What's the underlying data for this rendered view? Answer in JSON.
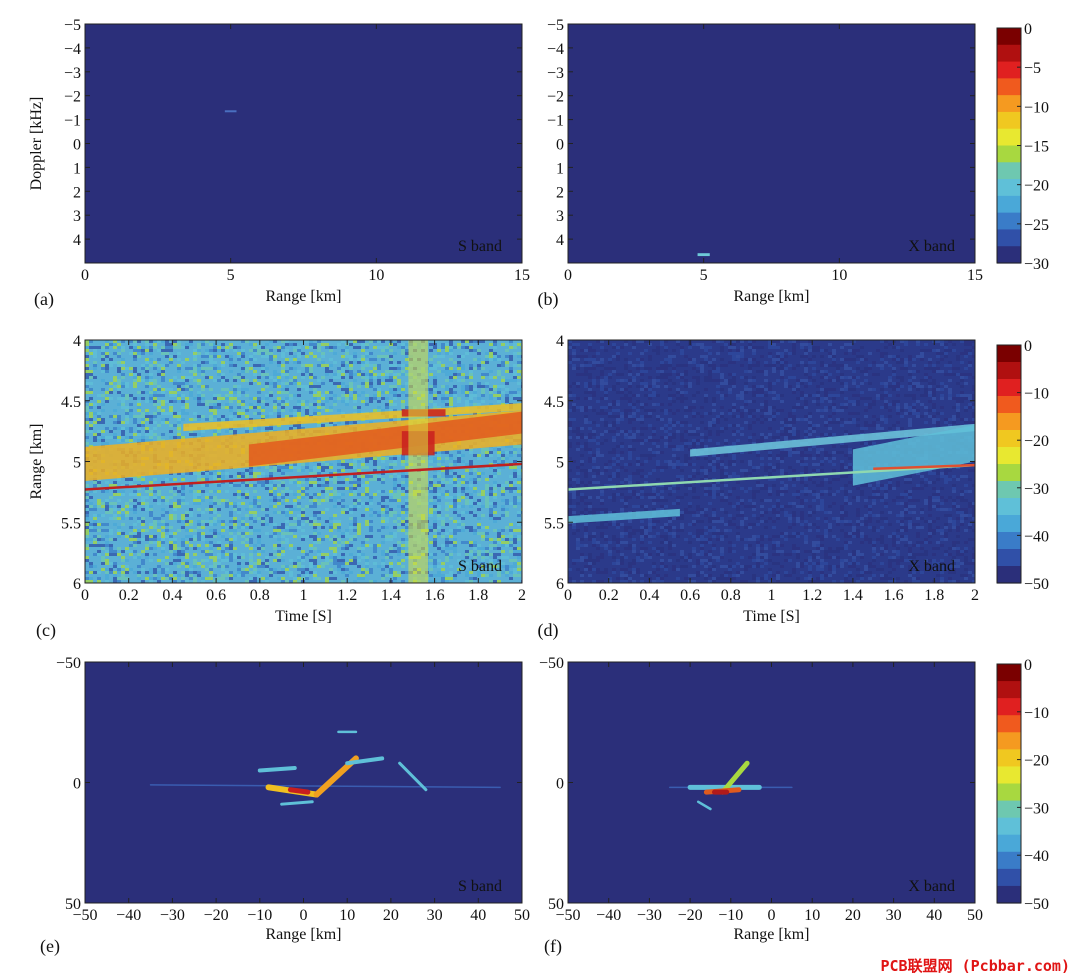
{
  "watermark": "PCB联盟网 (Pcbbar.com)",
  "chart_data": [
    {
      "id": "a",
      "type": "heatmap",
      "panel_label": "(a)",
      "band_label": "S band",
      "xlabel": "Range [km]",
      "ylabel": "Doppler [kHz]",
      "xlim": [
        0,
        15
      ],
      "ylim": [
        -5,
        5
      ],
      "y_inverted": true,
      "xticks": [
        0,
        5,
        10,
        15
      ],
      "xtick_labels": [
        "0",
        "5",
        "10",
        "15"
      ],
      "yticks": [
        -5,
        -4,
        -3,
        -2,
        -1,
        0,
        1,
        2,
        3,
        4
      ],
      "ytick_labels": [
        "−5",
        "−4",
        "−3",
        "−2",
        "−1",
        "0",
        "1",
        "2",
        "3",
        "4"
      ],
      "background": "#2b2f7a",
      "features": [
        {
          "x": 5.0,
          "y": -1.35,
          "w": 0.4,
          "h": 0.08,
          "color": "#4a6fc0"
        }
      ]
    },
    {
      "id": "b",
      "type": "heatmap",
      "panel_label": "(b)",
      "band_label": "X band",
      "xlabel": "Range [km]",
      "ylabel": "",
      "xlim": [
        0,
        15
      ],
      "ylim": [
        -5,
        5
      ],
      "y_inverted": true,
      "xticks": [
        0,
        5,
        10,
        15
      ],
      "xtick_labels": [
        "0",
        "5",
        "10",
        "15"
      ],
      "yticks": [
        -5,
        -4,
        -3,
        -2,
        -1,
        0,
        1,
        2,
        3,
        4
      ],
      "ytick_labels": [
        "−5",
        "−4",
        "−3",
        "−2",
        "−1",
        "0",
        "1",
        "2",
        "3",
        "4"
      ],
      "background": "#2b2f7a",
      "features": [
        {
          "x": 5.0,
          "y": 4.65,
          "w": 0.45,
          "h": 0.12,
          "color": "#6ecad8"
        }
      ]
    },
    {
      "id": "c",
      "type": "heatmap",
      "panel_label": "(c)",
      "band_label": "S band",
      "xlabel": "Time [S]",
      "ylabel": "Range [km]",
      "xlim": [
        0,
        2
      ],
      "ylim": [
        4,
        6
      ],
      "y_inverted": true,
      "xticks": [
        0,
        0.2,
        0.4,
        0.6,
        0.8,
        1,
        1.2,
        1.4,
        1.6,
        1.8,
        2
      ],
      "xtick_labels": [
        "0",
        "0.2",
        "0.4",
        "0.6",
        "0.8",
        "1",
        "1.2",
        "1.4",
        "1.6",
        "1.8",
        "2"
      ],
      "yticks": [
        4,
        4.5,
        5,
        5.5,
        6
      ],
      "ytick_labels": [
        "4",
        "4.5",
        "5",
        "5.5",
        "6"
      ],
      "background": "#5bb0d6",
      "features": [
        {
          "kind": "band",
          "x0": 0.45,
          "x1": 2.0,
          "y0a": 4.72,
          "y0b": 4.55,
          "thick": 0.06,
          "color": "#f0c020"
        },
        {
          "kind": "band",
          "x0": 0.0,
          "x1": 2.0,
          "y0a": 5.02,
          "y0b": 4.72,
          "thick": 0.28,
          "color": "#f0b020"
        },
        {
          "kind": "band",
          "x0": 0.75,
          "x1": 2.0,
          "y0a": 4.95,
          "y0b": 4.68,
          "thick": 0.18,
          "color": "#e25a1e"
        },
        {
          "kind": "band",
          "x0": 1.45,
          "x1": 1.6,
          "y0a": 4.85,
          "y0b": 4.85,
          "thick": 0.2,
          "color": "#c81e1e"
        },
        {
          "kind": "band",
          "x0": 1.45,
          "x1": 1.65,
          "y0a": 4.6,
          "y0b": 4.6,
          "thick": 0.06,
          "color": "#c81e1e"
        },
        {
          "kind": "vstripe",
          "x0": 1.48,
          "x1": 1.57,
          "color": "#d8e040"
        },
        {
          "kind": "line",
          "x0": 0.0,
          "x1": 2.0,
          "y0a": 5.23,
          "y0b": 5.02,
          "color": "#c02020"
        }
      ]
    },
    {
      "id": "d",
      "type": "heatmap",
      "panel_label": "(d)",
      "band_label": "X band",
      "xlabel": "Time [S]",
      "ylabel": "",
      "xlim": [
        0,
        2
      ],
      "ylim": [
        4,
        6
      ],
      "y_inverted": true,
      "xticks": [
        0,
        0.2,
        0.4,
        0.6,
        0.8,
        1,
        1.2,
        1.4,
        1.6,
        1.8,
        2
      ],
      "xtick_labels": [
        "0",
        "0.2",
        "0.4",
        "0.6",
        "0.8",
        "1",
        "1.2",
        "1.4",
        "1.6",
        "1.8",
        "2"
      ],
      "yticks": [
        4,
        4.5,
        5,
        5.5,
        6
      ],
      "ytick_labels": [
        "4",
        "4.5",
        "5",
        "5.5",
        "6"
      ],
      "background": "#2b3a8a",
      "features": [
        {
          "kind": "band",
          "x0": 0.6,
          "x1": 2.0,
          "y0a": 4.93,
          "y0b": 4.72,
          "thick": 0.06,
          "color": "#6ec8dc"
        },
        {
          "kind": "band",
          "x0": 1.4,
          "x1": 2.0,
          "y0a": 5.05,
          "y0b": 4.85,
          "thick": 0.3,
          "color": "#5fc0d8"
        },
        {
          "kind": "band",
          "x0": 0.0,
          "x1": 0.55,
          "y0a": 5.48,
          "y0b": 5.42,
          "thick": 0.06,
          "color": "#5fc0d8"
        },
        {
          "kind": "line",
          "x0": 0.0,
          "x1": 2.0,
          "y0a": 5.23,
          "y0b": 5.03,
          "color": "#8fd8b0"
        },
        {
          "kind": "line",
          "x0": 1.5,
          "x1": 2.0,
          "y0a": 5.06,
          "y0b": 5.03,
          "color": "#e05030"
        }
      ]
    },
    {
      "id": "e",
      "type": "heatmap",
      "panel_label": "(e)",
      "band_label": "S band",
      "xlabel": "Range [km]",
      "ylabel": "",
      "xlim": [
        -50,
        50
      ],
      "ylim": [
        -50,
        50
      ],
      "y_inverted": true,
      "xticks": [
        -50,
        -40,
        -30,
        -20,
        -10,
        0,
        10,
        20,
        30,
        40,
        50
      ],
      "xtick_labels": [
        "−50",
        "−40",
        "−30",
        "−20",
        "−10",
        "0",
        "10",
        "20",
        "30",
        "40",
        "50"
      ],
      "yticks": [
        -50,
        0,
        50
      ],
      "ytick_labels": [
        "−50",
        "0",
        "50"
      ],
      "background": "#2b2f7a",
      "features": [
        {
          "kind": "stroke",
          "x0": -35,
          "y0": 1,
          "x1": 45,
          "y1": 2,
          "width": 1.5,
          "color": "#3a5cb0"
        },
        {
          "kind": "stroke",
          "x0": -8,
          "y0": 2,
          "x1": 3,
          "y1": 5,
          "width": 6,
          "color": "#f0c020"
        },
        {
          "kind": "stroke",
          "x0": 3,
          "y0": 5,
          "x1": 12,
          "y1": -10,
          "width": 6,
          "color": "#f0a020"
        },
        {
          "kind": "stroke",
          "x0": -3,
          "y0": 3,
          "x1": 1,
          "y1": 4,
          "width": 5,
          "color": "#c81e1e"
        },
        {
          "kind": "stroke",
          "x0": 10,
          "y0": -8,
          "x1": 18,
          "y1": -10,
          "width": 4,
          "color": "#5fc0d8"
        },
        {
          "kind": "stroke",
          "x0": -10,
          "y0": -5,
          "x1": -2,
          "y1": -6,
          "width": 4,
          "color": "#5fc0d8"
        },
        {
          "kind": "stroke",
          "x0": 22,
          "y0": -8,
          "x1": 28,
          "y1": 3,
          "width": 3,
          "color": "#5fc0d8"
        },
        {
          "kind": "stroke",
          "x0": 8,
          "y0": -21,
          "x1": 12,
          "y1": -21,
          "width": 2.5,
          "color": "#5fc0d8"
        },
        {
          "kind": "stroke",
          "x0": -5,
          "y0": 9,
          "x1": 2,
          "y1": 8,
          "width": 3,
          "color": "#5fc0d8"
        }
      ]
    },
    {
      "id": "f",
      "type": "heatmap",
      "panel_label": "(f)",
      "band_label": "X band",
      "xlabel": "Range [km]",
      "ylabel": "",
      "xlim": [
        -50,
        50
      ],
      "ylim": [
        -50,
        50
      ],
      "y_inverted": true,
      "xticks": [
        -50,
        -40,
        -30,
        -20,
        -10,
        0,
        10,
        20,
        30,
        40,
        50
      ],
      "xtick_labels": [
        "−50",
        "−40",
        "−30",
        "−20",
        "−10",
        "0",
        "10",
        "20",
        "30",
        "40",
        "50"
      ],
      "yticks": [
        -50,
        0,
        50
      ],
      "ytick_labels": [
        "−50",
        "0",
        "50"
      ],
      "background": "#2b2f7a",
      "features": [
        {
          "kind": "stroke",
          "x0": -25,
          "y0": 2,
          "x1": 5,
          "y1": 2,
          "width": 1.5,
          "color": "#3a5cb0"
        },
        {
          "kind": "stroke",
          "x0": -20,
          "y0": 2,
          "x1": -3,
          "y1": 2,
          "width": 5,
          "color": "#5fc0d8"
        },
        {
          "kind": "stroke",
          "x0": -12,
          "y0": 4,
          "x1": -6,
          "y1": -8,
          "width": 5,
          "color": "#a8d840"
        },
        {
          "kind": "stroke",
          "x0": -16,
          "y0": 4,
          "x1": -8,
          "y1": 3,
          "width": 5,
          "color": "#e05a1e"
        },
        {
          "kind": "stroke",
          "x0": -14,
          "y0": 4,
          "x1": -11,
          "y1": 4,
          "width": 5,
          "color": "#b01a1a"
        },
        {
          "kind": "stroke",
          "x0": -18,
          "y0": 8,
          "x1": -15,
          "y1": 11,
          "width": 2.5,
          "color": "#5fc0d8"
        }
      ]
    }
  ],
  "colorbars": [
    {
      "id": "cb1",
      "ticks": [
        0,
        -5,
        -10,
        -15,
        -20,
        -25,
        -30
      ],
      "tick_labels": [
        "0",
        "−5",
        "−10",
        "−15",
        "−20",
        "−25",
        "−30"
      ],
      "range": [
        -30,
        0
      ]
    },
    {
      "id": "cb2",
      "ticks": [
        0,
        -10,
        -20,
        -30,
        -40,
        -50
      ],
      "tick_labels": [
        "0",
        "−10",
        "−20",
        "−30",
        "−40",
        "−50"
      ],
      "range": [
        -50,
        0
      ]
    },
    {
      "id": "cb3",
      "ticks": [
        0,
        -10,
        -20,
        -30,
        -40,
        -50
      ],
      "tick_labels": [
        "0",
        "−10",
        "−20",
        "−30",
        "−40",
        "−50"
      ],
      "range": [
        -50,
        0
      ]
    }
  ],
  "colormap": [
    "#7a0000",
    "#b01010",
    "#e02020",
    "#f05a1e",
    "#f59a20",
    "#f0c820",
    "#e8e830",
    "#a8d840",
    "#6ec8b0",
    "#5fc0d8",
    "#4aa8d8",
    "#3a7cc8",
    "#3050a8",
    "#2b2f7a"
  ]
}
